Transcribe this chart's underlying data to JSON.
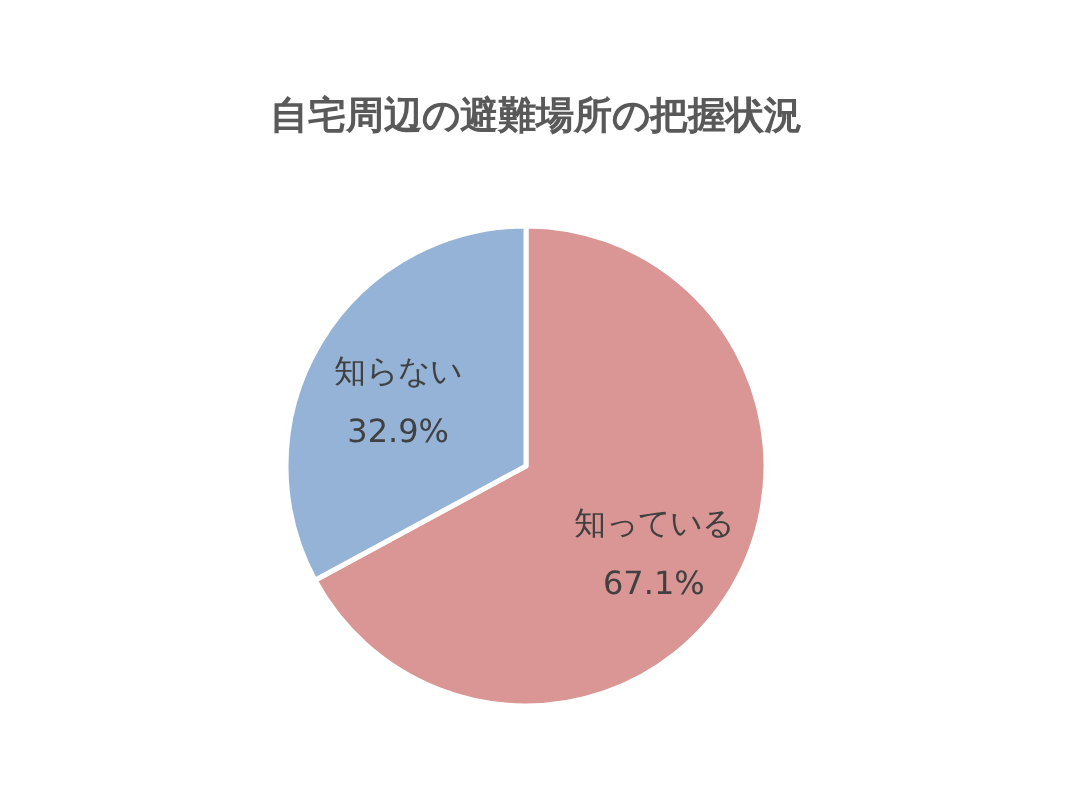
{
  "chart_data": {
    "type": "pie",
    "title": "自宅周辺の避難場所の把握状況",
    "categories": [
      "知っている",
      "知らない"
    ],
    "values": [
      67.1,
      32.9
    ],
    "value_labels": [
      "67.1%",
      "32.9%"
    ],
    "colors": [
      "#d99694",
      "#95b3d7"
    ]
  }
}
